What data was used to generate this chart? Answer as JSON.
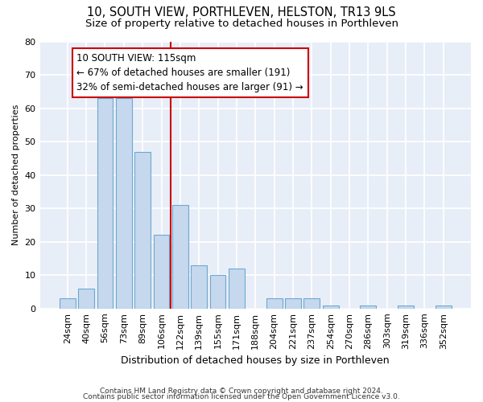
{
  "title": "10, SOUTH VIEW, PORTHLEVEN, HELSTON, TR13 9LS",
  "subtitle": "Size of property relative to detached houses in Porthleven",
  "xlabel": "Distribution of detached houses by size in Porthleven",
  "ylabel": "Number of detached properties",
  "categories": [
    "24sqm",
    "40sqm",
    "56sqm",
    "73sqm",
    "89sqm",
    "106sqm",
    "122sqm",
    "139sqm",
    "155sqm",
    "171sqm",
    "188sqm",
    "204sqm",
    "221sqm",
    "237sqm",
    "254sqm",
    "270sqm",
    "286sqm",
    "303sqm",
    "319sqm",
    "336sqm",
    "352sqm"
  ],
  "values": [
    3,
    6,
    63,
    63,
    47,
    22,
    31,
    13,
    10,
    12,
    0,
    3,
    3,
    3,
    1,
    0,
    1,
    0,
    1,
    0,
    1
  ],
  "bar_color": "#c5d8ed",
  "bar_edgecolor": "#6fa8d0",
  "bg_color": "#e8eef8",
  "grid_color": "#ffffff",
  "annotation_line1": "10 SOUTH VIEW: 115sqm",
  "annotation_line2": "← 67% of detached houses are smaller (191)",
  "annotation_line3": "32% of semi-detached houses are larger (91) →",
  "annotation_box_facecolor": "#ffffff",
  "annotation_box_edgecolor": "#cc0000",
  "vline_color": "#cc0000",
  "vline_x_idx": 5.5,
  "footer_line1": "Contains HM Land Registry data © Crown copyright and database right 2024.",
  "footer_line2": "Contains public sector information licensed under the Open Government Licence v3.0.",
  "ylim": [
    0,
    80
  ],
  "yticks": [
    0,
    10,
    20,
    30,
    40,
    50,
    60,
    70,
    80
  ],
  "title_fontsize": 10.5,
  "subtitle_fontsize": 9.5,
  "xlabel_fontsize": 9,
  "ylabel_fontsize": 8,
  "tick_fontsize": 8,
  "annotation_fontsize": 8.5,
  "footer_fontsize": 6.5
}
